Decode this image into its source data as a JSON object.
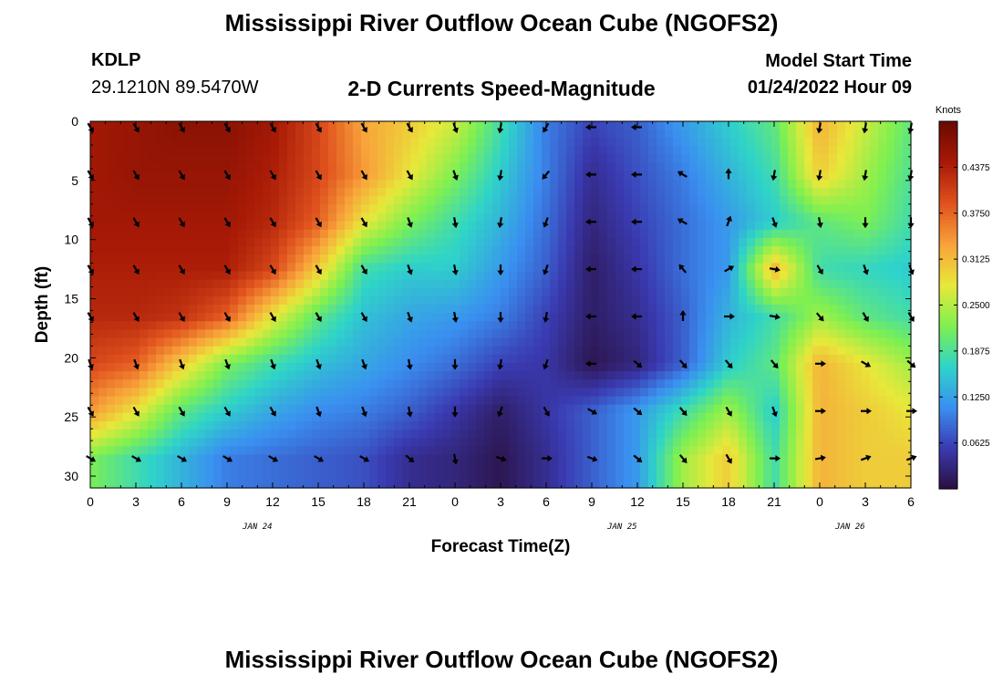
{
  "titles": {
    "main": "Mississippi River Outflow Ocean Cube (NGOFS2)",
    "second": "Mississippi River Outflow Ocean Cube (NGOFS2)"
  },
  "station": {
    "id": "KDLP",
    "coords": "29.1210N  89.5470W"
  },
  "subtitle": "2-D Currents Speed-Magnitude",
  "model_start": {
    "label": "Model Start Time",
    "value": "01/24/2022 Hour 09"
  },
  "colors": {
    "colormap": [
      "#2a0f3d",
      "#3a3ab0",
      "#3a8ff0",
      "#2fd4c8",
      "#7ff050",
      "#e8e83a",
      "#f8a23a",
      "#e0521e",
      "#a81a06",
      "#6a0a02"
    ]
  },
  "chart_data": {
    "type": "heatmap",
    "xlabel": "Forecast Time(Z)",
    "ylabel": "Depth (ft)",
    "x_ticks": [
      "0",
      "3",
      "6",
      "9",
      "12",
      "15",
      "18",
      "21",
      "0",
      "3",
      "6",
      "9",
      "12",
      "15",
      "18",
      "21",
      "0",
      "3",
      "6"
    ],
    "x_hours": [
      0,
      3,
      6,
      9,
      12,
      15,
      18,
      21,
      24,
      27,
      30,
      33,
      36,
      39,
      42,
      45,
      48,
      51,
      54
    ],
    "date_labels": [
      {
        "label": "JAN 24",
        "hour": 11
      },
      {
        "label": "JAN 25",
        "hour": 35
      },
      {
        "label": "JAN 26",
        "hour": 50
      }
    ],
    "y_ticks": [
      0,
      5,
      10,
      15,
      20,
      25,
      30
    ],
    "xlim": [
      0,
      54
    ],
    "ylim": [
      31,
      0
    ],
    "colorbar": {
      "label": "Knots",
      "ticks": [
        "0.4375",
        "0.3750",
        "0.3125",
        "0.2500",
        "0.1875",
        "0.1250",
        "0.0625"
      ],
      "tick_values": [
        0.4375,
        0.375,
        0.3125,
        0.25,
        0.1875,
        0.125,
        0.0625
      ],
      "range": [
        0,
        0.5
      ]
    },
    "depths": [
      0.5,
      4.5,
      8.5,
      12.5,
      16.5,
      20.5,
      24.5,
      28.5
    ],
    "speed_knots": [
      [
        0.45,
        0.46,
        0.47,
        0.47,
        0.45,
        0.4,
        0.33,
        0.3,
        0.26,
        0.18,
        0.1,
        0.06,
        0.08,
        0.12,
        0.16,
        0.2,
        0.32,
        0.26,
        0.2
      ],
      [
        0.45,
        0.46,
        0.46,
        0.46,
        0.44,
        0.4,
        0.34,
        0.28,
        0.22,
        0.16,
        0.1,
        0.04,
        0.07,
        0.1,
        0.14,
        0.18,
        0.3,
        0.24,
        0.19
      ],
      [
        0.45,
        0.45,
        0.45,
        0.45,
        0.43,
        0.38,
        0.28,
        0.22,
        0.18,
        0.14,
        0.09,
        0.03,
        0.06,
        0.09,
        0.12,
        0.16,
        0.2,
        0.22,
        0.18
      ],
      [
        0.44,
        0.44,
        0.44,
        0.44,
        0.4,
        0.3,
        0.18,
        0.16,
        0.16,
        0.12,
        0.08,
        0.02,
        0.05,
        0.09,
        0.12,
        0.32,
        0.18,
        0.17,
        0.16
      ],
      [
        0.43,
        0.43,
        0.42,
        0.38,
        0.28,
        0.2,
        0.15,
        0.13,
        0.12,
        0.1,
        0.06,
        0.02,
        0.04,
        0.08,
        0.14,
        0.18,
        0.24,
        0.2,
        0.18
      ],
      [
        0.4,
        0.38,
        0.3,
        0.22,
        0.18,
        0.15,
        0.13,
        0.11,
        0.09,
        0.06,
        0.05,
        0.01,
        0.03,
        0.08,
        0.16,
        0.2,
        0.32,
        0.28,
        0.24
      ],
      [
        0.34,
        0.28,
        0.2,
        0.16,
        0.13,
        0.11,
        0.1,
        0.08,
        0.05,
        0.02,
        0.05,
        0.08,
        0.12,
        0.18,
        0.24,
        0.16,
        0.32,
        0.3,
        0.28
      ],
      [
        0.22,
        0.18,
        0.14,
        0.1,
        0.09,
        0.08,
        0.07,
        0.04,
        0.03,
        0.01,
        0.04,
        0.08,
        0.12,
        0.24,
        0.3,
        0.18,
        0.32,
        0.3,
        0.3
      ]
    ],
    "direction_deg": [
      [
        150,
        150,
        150,
        150,
        150,
        150,
        150,
        150,
        160,
        190,
        210,
        270,
        270,
        null,
        null,
        null,
        190,
        190,
        190
      ],
      [
        150,
        150,
        150,
        150,
        150,
        150,
        150,
        150,
        160,
        190,
        220,
        270,
        270,
        300,
        360,
        190,
        190,
        190,
        190
      ],
      [
        150,
        150,
        150,
        150,
        150,
        150,
        150,
        160,
        170,
        190,
        200,
        270,
        270,
        300,
        20,
        160,
        170,
        180,
        180
      ],
      [
        150,
        150,
        150,
        150,
        150,
        150,
        150,
        160,
        170,
        180,
        200,
        270,
        270,
        320,
        60,
        100,
        150,
        160,
        160
      ],
      [
        150,
        150,
        150,
        150,
        150,
        150,
        150,
        160,
        170,
        180,
        190,
        270,
        270,
        360,
        90,
        100,
        140,
        150,
        150
      ],
      [
        160,
        160,
        160,
        160,
        160,
        160,
        160,
        170,
        180,
        190,
        200,
        270,
        130,
        140,
        140,
        140,
        90,
        120,
        130
      ],
      [
        150,
        150,
        150,
        150,
        150,
        160,
        160,
        170,
        180,
        200,
        150,
        120,
        130,
        140,
        150,
        160,
        90,
        90,
        90
      ],
      [
        120,
        120,
        120,
        120,
        120,
        120,
        120,
        130,
        170,
        110,
        90,
        110,
        130,
        140,
        150,
        90,
        80,
        70,
        70
      ]
    ]
  }
}
